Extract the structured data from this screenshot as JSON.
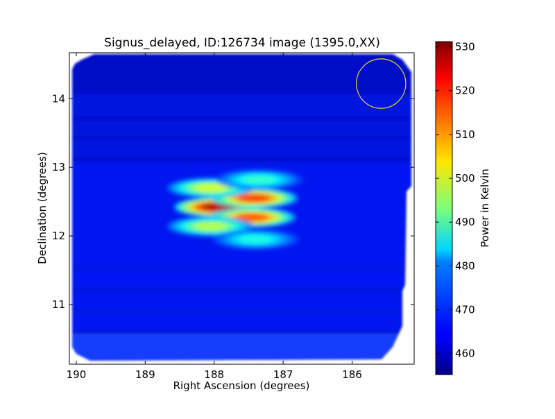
{
  "chart_data": {
    "type": "heatmap",
    "title": "Signus_delayed, ID:126734 image (1395.0,XX)",
    "xlabel": "Right Ascension (degrees)",
    "ylabel": "Declination (degrees)",
    "colorbar_label": "Power in Kelvin",
    "colormap": "jet",
    "xlim": [
      190.1,
      185.1
    ],
    "ylim": [
      10.13,
      14.67
    ],
    "x_ticks": [
      190,
      189,
      188,
      187,
      186
    ],
    "y_ticks": [
      11,
      12,
      13,
      14
    ],
    "x_tick_labels": [
      "190",
      "189",
      "188",
      "187",
      "186"
    ],
    "y_tick_labels": [
      "11",
      "12",
      "13",
      "14"
    ],
    "colorbar_range": [
      455.2,
      531.2
    ],
    "colorbar_ticks": [
      460,
      470,
      480,
      490,
      500,
      510,
      520,
      530
    ],
    "colorbar_tick_labels": [
      "460",
      "470",
      "480",
      "490",
      "500",
      "510",
      "520",
      "530"
    ],
    "background_level": 462,
    "hotspots": [
      {
        "ra": 187.95,
        "dec": 12.42,
        "power": 528
      },
      {
        "ra": 187.42,
        "dec": 12.55,
        "power": 518
      },
      {
        "ra": 187.45,
        "dec": 12.27,
        "power": 516
      },
      {
        "ra": 188.05,
        "dec": 12.7,
        "power": 500
      },
      {
        "ra": 188.05,
        "dec": 12.14,
        "power": 498
      },
      {
        "ra": 187.35,
        "dec": 12.82,
        "power": 488
      },
      {
        "ra": 187.4,
        "dec": 11.95,
        "power": 486
      }
    ],
    "beam_circle": {
      "ra": 185.58,
      "dec": 14.22,
      "radius_deg": 0.36,
      "color": "#e6d72a"
    }
  }
}
